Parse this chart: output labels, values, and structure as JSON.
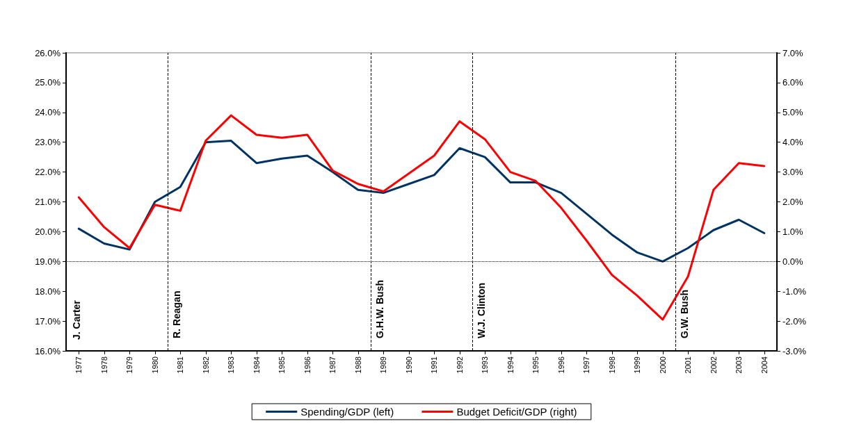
{
  "chart_data": {
    "type": "line",
    "x": [
      1977,
      1978,
      1979,
      1980,
      1981,
      1982,
      1983,
      1984,
      1985,
      1986,
      1987,
      1988,
      1989,
      1990,
      1991,
      1992,
      1993,
      1994,
      1995,
      1996,
      1997,
      1998,
      1999,
      2000,
      2001,
      2002,
      2003,
      2004
    ],
    "xlim": [
      1976.5,
      2004.5
    ],
    "xticks": [
      1977,
      1978,
      1979,
      1980,
      1981,
      1982,
      1983,
      1984,
      1985,
      1986,
      1987,
      1988,
      1989,
      1990,
      1991,
      1992,
      1993,
      1994,
      1995,
      1996,
      1997,
      1998,
      1999,
      2000,
      2001,
      2002,
      2003,
      2004
    ],
    "ylim": [
      16,
      26
    ],
    "yticks": [
      {
        "value": 16,
        "label": "16.0%"
      },
      {
        "value": 17,
        "label": "17.0%"
      },
      {
        "value": 18,
        "label": "18.0%"
      },
      {
        "value": 19,
        "label": "19.0%"
      },
      {
        "value": 20,
        "label": "20.0%"
      },
      {
        "value": 21,
        "label": "21.0%"
      },
      {
        "value": 22,
        "label": "22.0%"
      },
      {
        "value": 23,
        "label": "23.0%"
      },
      {
        "value": 24,
        "label": "24.0%"
      },
      {
        "value": 25,
        "label": "25.0%"
      },
      {
        "value": 26,
        "label": "26.0%"
      }
    ],
    "y2lim": [
      -3,
      7
    ],
    "y2ticks": [
      {
        "value": -3,
        "label": "-3.0%"
      },
      {
        "value": -2,
        "label": "-2.0%"
      },
      {
        "value": -1,
        "label": "-1.0%"
      },
      {
        "value": 0,
        "label": "0.0%"
      },
      {
        "value": 1,
        "label": "1.0%"
      },
      {
        "value": 2,
        "label": "2.0%"
      },
      {
        "value": 3,
        "label": "3.0%"
      },
      {
        "value": 4,
        "label": "4.0%"
      },
      {
        "value": 5,
        "label": "5.0%"
      },
      {
        "value": 6,
        "label": "6.0%"
      },
      {
        "value": 7,
        "label": "7.0%"
      }
    ],
    "series": [
      {
        "name": "Spending/GDP (left)",
        "color": "#003366",
        "values": [
          20.1,
          19.6,
          19.4,
          21.0,
          21.5,
          23.0,
          23.05,
          22.3,
          22.45,
          22.55,
          22.0,
          21.4,
          21.3,
          21.6,
          21.9,
          22.8,
          22.5,
          21.65,
          21.65,
          21.3,
          20.6,
          19.9,
          19.3,
          19.0,
          19.45,
          20.05,
          20.4,
          19.95
        ]
      },
      {
        "name": "Budget Deficit/GDP (right)",
        "color": "#ff0000",
        "axis": "y2",
        "values": [
          2.15,
          1.15,
          0.45,
          1.9,
          1.7,
          4.05,
          4.9,
          4.25,
          4.15,
          4.25,
          3.05,
          2.6,
          2.35,
          2.95,
          3.55,
          4.7,
          4.1,
          3.0,
          2.7,
          1.8,
          0.7,
          -0.45,
          -1.15,
          -1.95,
          -0.5,
          2.4,
          3.3,
          3.2
        ]
      }
    ],
    "ref_lines": [
      {
        "axis": "x",
        "value": 1980.5,
        "label": "R. Reagan",
        "line_style": "dashed"
      },
      {
        "axis": "x",
        "value": 1988.5,
        "label": "G.H.W. Bush",
        "line_style": "dashed"
      },
      {
        "axis": "x",
        "value": 1992.5,
        "label": "W.J. Clinton",
        "line_style": "dashed"
      },
      {
        "axis": "x",
        "value": 2000.5,
        "label": "G.W. Bush",
        "line_style": "dashed"
      },
      {
        "axis": "y2",
        "value": 0,
        "line_style": "dotted"
      }
    ],
    "annotations": [
      "J. Carter"
    ],
    "legend": "bottom",
    "grid": false,
    "marker": "none",
    "line_style": "solid"
  }
}
